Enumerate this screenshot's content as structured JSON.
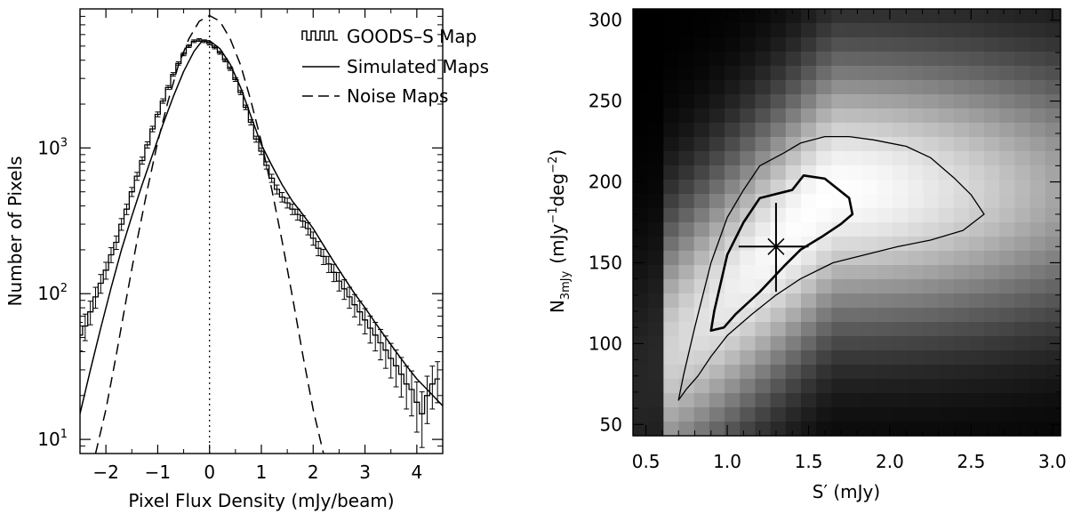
{
  "chart_data": [
    {
      "type": "line",
      "xlabel": "Pixel Flux Density (mJy/beam)",
      "ylabel": "Number of Pixels",
      "xlim": [
        -2.5,
        4.5
      ],
      "ylim": [
        8,
        9000
      ],
      "yscale": "log",
      "grid": false,
      "legend_position": "top-right",
      "x_ticks": [
        -2,
        -1,
        0,
        1,
        2,
        3,
        4
      ],
      "x_tick_labels": [
        "−2",
        "−1",
        "0",
        "1",
        "2",
        "3",
        "4"
      ],
      "y_ticks": [
        10,
        100,
        1000
      ],
      "y_tick_labels": [
        "10",
        "10",
        "10"
      ],
      "y_tick_exponents": [
        "1",
        "2",
        "3"
      ],
      "vertical_reference_line": {
        "x": 0,
        "style": "dotted"
      },
      "series": [
        {
          "name": "GOODS–S Map",
          "style": "histogram-with-errorbars",
          "x": [
            -2.5,
            -2.4,
            -2.3,
            -2.2,
            -2.1,
            -2.0,
            -1.9,
            -1.8,
            -1.7,
            -1.6,
            -1.5,
            -1.4,
            -1.3,
            -1.2,
            -1.1,
            -1.0,
            -0.9,
            -0.8,
            -0.7,
            -0.6,
            -0.5,
            -0.4,
            -0.3,
            -0.2,
            -0.1,
            0.0,
            0.1,
            0.2,
            0.3,
            0.4,
            0.5,
            0.6,
            0.7,
            0.8,
            0.9,
            1.0,
            1.1,
            1.2,
            1.3,
            1.4,
            1.5,
            1.6,
            1.7,
            1.8,
            1.9,
            2.0,
            2.1,
            2.2,
            2.3,
            2.4,
            2.5,
            2.6,
            2.7,
            2.8,
            2.9,
            3.0,
            3.1,
            3.2,
            3.3,
            3.4,
            3.5,
            3.6,
            3.7,
            3.8,
            3.9,
            4.0,
            4.1,
            4.2,
            4.3,
            4.4
          ],
          "y": [
            52,
            60,
            75,
            95,
            118,
            145,
            185,
            225,
            300,
            380,
            500,
            640,
            820,
            1050,
            1350,
            1700,
            2100,
            2600,
            3200,
            3800,
            4400,
            5000,
            5400,
            5500,
            5400,
            5200,
            4900,
            4500,
            4000,
            3500,
            2950,
            2400,
            1900,
            1500,
            1150,
            950,
            760,
            620,
            520,
            460,
            420,
            380,
            350,
            315,
            280,
            240,
            205,
            180,
            160,
            140,
            122,
            108,
            95,
            84,
            75,
            66,
            58,
            52,
            46,
            41,
            36,
            32,
            28,
            24,
            22,
            18,
            15,
            20,
            24,
            26
          ]
        },
        {
          "name": "Simulated Maps",
          "style": "solid",
          "x": [
            -2.5,
            -2.3,
            -2.1,
            -1.9,
            -1.7,
            -1.5,
            -1.3,
            -1.1,
            -0.9,
            -0.7,
            -0.5,
            -0.3,
            -0.15,
            0.0,
            0.2,
            0.4,
            0.6,
            0.8,
            1.0,
            1.2,
            1.4,
            1.6,
            1.8,
            2.0,
            2.2,
            2.4,
            2.6,
            2.8,
            3.0,
            3.2,
            3.4,
            3.6,
            3.8,
            4.0,
            4.2,
            4.5
          ],
          "y": [
            15,
            30,
            58,
            110,
            200,
            340,
            560,
            900,
            1450,
            2250,
            3350,
            4600,
            5400,
            5450,
            4800,
            3750,
            2600,
            1650,
            1050,
            760,
            560,
            430,
            350,
            280,
            215,
            165,
            128,
            100,
            80,
            63,
            50,
            40,
            32,
            26,
            22,
            17
          ]
        },
        {
          "name": "Noise Maps",
          "style": "dashed",
          "x": [
            -2.2,
            -2.0,
            -1.8,
            -1.6,
            -1.4,
            -1.2,
            -1.0,
            -0.8,
            -0.6,
            -0.4,
            -0.2,
            0.0,
            0.2,
            0.4,
            0.6,
            0.8,
            1.0,
            1.2,
            1.4,
            1.6,
            1.8,
            2.0,
            2.2
          ],
          "y": [
            8,
            16,
            38,
            95,
            230,
            520,
            1100,
            2100,
            3700,
            5600,
            7400,
            8100,
            7400,
            5600,
            3700,
            2100,
            1100,
            520,
            230,
            95,
            38,
            16,
            8
          ]
        }
      ]
    },
    {
      "type": "heatmap",
      "xlabel": "S′ (mJy)",
      "ylabel_main": "N",
      "ylabel_sub": "3mJy",
      "ylabel_units": "(mJy",
      "ylabel_exp1": "−1",
      "ylabel_mid": "deg",
      "ylabel_exp2": "−2",
      "ylabel_close": ")",
      "xlim": [
        0.42,
        3.05
      ],
      "ylim": [
        43,
        307
      ],
      "x_ticks": [
        0.5,
        1.0,
        1.5,
        2.0,
        2.5,
        3.0
      ],
      "x_tick_labels": [
        "0.5",
        "1.0",
        "1.5",
        "2.0",
        "2.5",
        "3.0"
      ],
      "y_ticks": [
        50,
        100,
        150,
        200,
        250,
        300
      ],
      "y_tick_labels": [
        "50",
        "100",
        "150",
        "200",
        "250",
        "300"
      ],
      "colormap": "grayscale",
      "grid": false,
      "best_fit": {
        "x": 1.3,
        "y": 160,
        "x_err": [
          1.07,
          1.5
        ],
        "y_err": [
          132,
          187
        ]
      },
      "contours": [
        {
          "level": "inner",
          "line_width": "thick",
          "x": [
            0.9,
            0.92,
            1.0,
            1.1,
            1.2,
            1.4,
            1.47,
            1.6,
            1.75,
            1.77,
            1.7,
            1.58,
            1.45,
            1.35,
            1.2,
            1.05,
            0.98,
            0.9
          ],
          "y": [
            108,
            120,
            155,
            175,
            190,
            195,
            204,
            202,
            190,
            180,
            174,
            166,
            158,
            148,
            132,
            118,
            110,
            108
          ]
        },
        {
          "level": "outer",
          "line_width": "thin",
          "x": [
            0.7,
            0.73,
            0.8,
            0.9,
            1.0,
            1.1,
            1.2,
            1.35,
            1.45,
            1.6,
            1.75,
            1.9,
            2.1,
            2.25,
            2.4,
            2.5,
            2.58,
            2.45,
            2.25,
            2.05,
            1.85,
            1.65,
            1.45,
            1.3,
            1.15,
            1.0,
            0.9,
            0.82,
            0.75,
            0.7
          ],
          "y": [
            65,
            80,
            110,
            150,
            178,
            195,
            210,
            218,
            224,
            228,
            228,
            226,
            222,
            215,
            202,
            192,
            180,
            170,
            164,
            160,
            155,
            150,
            140,
            130,
            118,
            105,
            92,
            80,
            72,
            65
          ]
        }
      ]
    }
  ],
  "legend": {
    "items": [
      {
        "label": "GOODS–S Map",
        "symbol": "histogram"
      },
      {
        "label": "Simulated Maps",
        "symbol": "solid"
      },
      {
        "label": "Noise Maps",
        "symbol": "dashed"
      }
    ]
  },
  "colors": {
    "ink": "#000000",
    "background": "#ffffff"
  }
}
